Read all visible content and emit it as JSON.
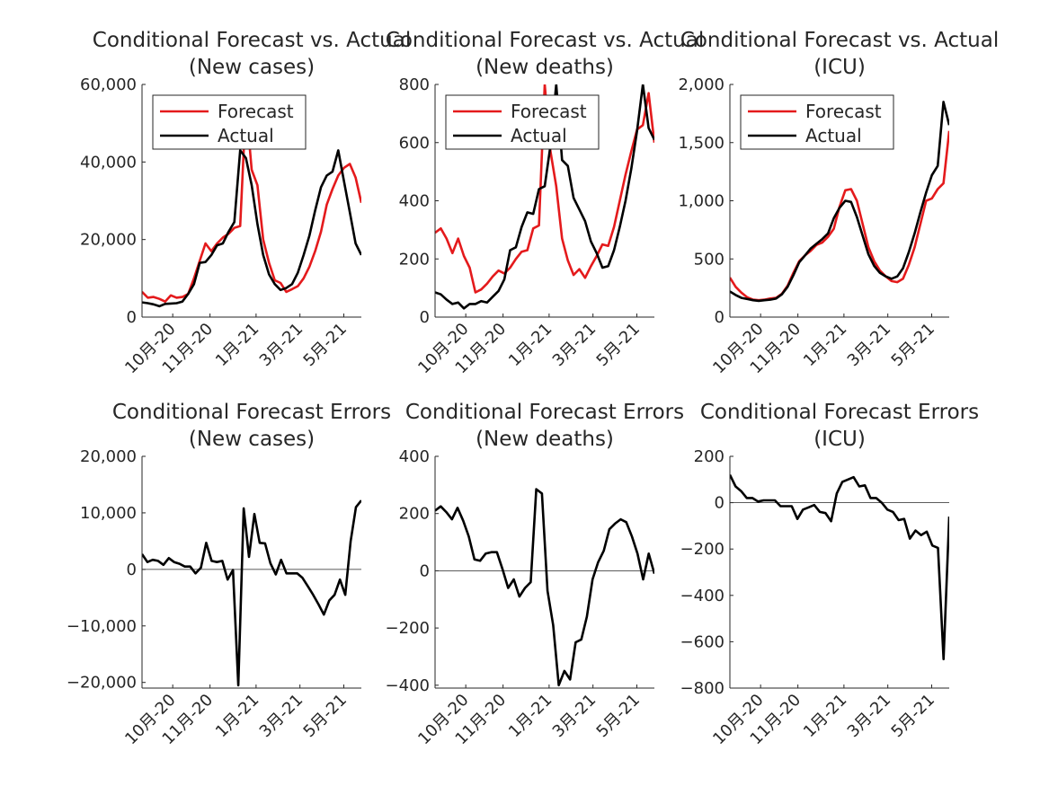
{
  "figure": {
    "background": "#ffffff",
    "forecast_color": "#e41a1c",
    "actual_color": "#000000"
  },
  "chart_data": [
    {
      "type": "line",
      "title": [
        "Conditional Forecast vs. Actual",
        "(New cases)"
      ],
      "xlabel": "",
      "ylabel": "",
      "xticks": [
        "10月-20",
        "11月-20",
        "1月-21",
        "3月-21",
        "5月-21"
      ],
      "ylim": [
        0,
        60000
      ],
      "yticks": [
        "0",
        "20,000",
        "40,000",
        "60,000"
      ],
      "ytick_values": [
        0,
        20000,
        40000,
        60000
      ],
      "legend": "top-left",
      "series": [
        {
          "name": "Forecast",
          "color": "#e41a1c",
          "values": [
            6500,
            5000,
            5200,
            4700,
            4000,
            5600,
            5000,
            5200,
            6000,
            10000,
            14500,
            19000,
            17000,
            19000,
            20500,
            21500,
            23000,
            23500,
            55000,
            38000,
            34000,
            20000,
            14000,
            9500,
            8800,
            6500,
            7200,
            8000,
            10000,
            13000,
            17000,
            22000,
            29000,
            33000,
            36500,
            38500,
            39500,
            36000,
            29500
          ]
        },
        {
          "name": "Actual",
          "color": "#000000",
          "values": [
            3800,
            3600,
            3300,
            2800,
            3400,
            3500,
            3600,
            4000,
            6000,
            8500,
            14000,
            14200,
            16000,
            18500,
            19000,
            22000,
            24500,
            43000,
            41000,
            34000,
            24000,
            16000,
            11000,
            8500,
            7000,
            7500,
            8500,
            11500,
            16000,
            21000,
            27500,
            33500,
            36500,
            37500,
            43000,
            35000,
            27000,
            19000,
            16000
          ]
        }
      ]
    },
    {
      "type": "line",
      "title": [
        "Conditional Forecast vs. Actual",
        "(New deaths)"
      ],
      "xlabel": "",
      "ylabel": "",
      "xticks": [
        "10月-20",
        "11月-20",
        "1月-21",
        "3月-21",
        "5月-21"
      ],
      "ylim": [
        0,
        800
      ],
      "yticks": [
        "0",
        "200",
        "400",
        "600",
        "800"
      ],
      "ytick_values": [
        0,
        200,
        400,
        600,
        800
      ],
      "legend": "top-left",
      "series": [
        {
          "name": "Forecast",
          "color": "#e41a1c",
          "values": [
            290,
            305,
            270,
            220,
            270,
            210,
            170,
            85,
            95,
            115,
            140,
            160,
            150,
            170,
            200,
            225,
            230,
            305,
            315,
            800,
            570,
            450,
            270,
            195,
            145,
            165,
            135,
            175,
            210,
            250,
            245,
            310,
            400,
            490,
            570,
            645,
            660,
            770,
            600
          ]
        },
        {
          "name": "Actual",
          "color": "#000000",
          "values": [
            85,
            78,
            60,
            45,
            50,
            30,
            45,
            45,
            55,
            50,
            70,
            90,
            130,
            230,
            240,
            310,
            360,
            355,
            440,
            450,
            590,
            800,
            540,
            520,
            410,
            370,
            330,
            260,
            220,
            170,
            175,
            230,
            310,
            400,
            510,
            640,
            800,
            650,
            610
          ]
        }
      ]
    },
    {
      "type": "line",
      "title": [
        "Conditional Forecast vs. Actual",
        "(ICU)"
      ],
      "xlabel": "",
      "ylabel": "",
      "xticks": [
        "10月-20",
        "11月-20",
        "1月-21",
        "3月-21",
        "5月-21"
      ],
      "ylim": [
        0,
        2000
      ],
      "yticks": [
        "0",
        "500",
        "1,000",
        "1,500",
        "2,000"
      ],
      "ytick_values": [
        0,
        500,
        1000,
        1500,
        2000
      ],
      "legend": "top-left",
      "series": [
        {
          "name": "Forecast",
          "color": "#e41a1c",
          "values": [
            340,
            260,
            210,
            170,
            150,
            145,
            150,
            160,
            165,
            200,
            270,
            380,
            480,
            530,
            570,
            620,
            640,
            690,
            760,
            950,
            1090,
            1100,
            1000,
            800,
            600,
            480,
            400,
            350,
            310,
            300,
            330,
            450,
            600,
            800,
            1000,
            1020,
            1100,
            1150,
            1600
          ]
        },
        {
          "name": "Actual",
          "color": "#000000",
          "values": [
            220,
            190,
            165,
            155,
            145,
            140,
            145,
            150,
            160,
            195,
            260,
            360,
            470,
            530,
            590,
            630,
            670,
            720,
            850,
            940,
            1000,
            990,
            860,
            700,
            540,
            440,
            380,
            350,
            330,
            350,
            420,
            560,
            720,
            900,
            1070,
            1220,
            1300,
            1850,
            1650
          ]
        }
      ]
    },
    {
      "type": "line",
      "title": [
        "Conditional Forecast Errors",
        "(New cases)"
      ],
      "xlabel": "",
      "ylabel": "",
      "xticks": [
        "10月-20",
        "11月-20",
        "1月-21",
        "3月-21",
        "5月-21"
      ],
      "ylim": [
        -21000,
        20000
      ],
      "yticks": [
        "−20,000",
        "−10,000",
        "0",
        "10,000",
        "20,000"
      ],
      "ytick_values": [
        -20000,
        -10000,
        0,
        10000,
        20000
      ],
      "zero_line": true,
      "series": [
        {
          "name": "",
          "color": "#000000",
          "values": [
            2700,
            1300,
            1700,
            1500,
            800,
            2000,
            1300,
            1000,
            500,
            500,
            -700,
            300,
            4700,
            1500,
            1300,
            1500,
            -1800,
            -100,
            -20500,
            10800,
            2200,
            9800,
            4700,
            4600,
            1100,
            -900,
            1700,
            -700,
            -700,
            -700,
            -1500,
            -3000,
            -4500,
            -6200,
            -8000,
            -5500,
            -4500,
            -1800,
            -4500,
            5000,
            11000,
            12200
          ]
        }
      ]
    },
    {
      "type": "line",
      "title": [
        "Conditional Forecast Errors",
        "(New deaths)"
      ],
      "xlabel": "",
      "ylabel": "",
      "xticks": [
        "10月-20",
        "11月-20",
        "1月-21",
        "3月-21",
        "5月-21"
      ],
      "ylim": [
        -410,
        400
      ],
      "yticks": [
        "−400",
        "−200",
        "0",
        "200",
        "400"
      ],
      "ytick_values": [
        -400,
        -200,
        0,
        200,
        400
      ],
      "zero_line": true,
      "series": [
        {
          "name": "",
          "color": "#000000",
          "values": [
            210,
            225,
            205,
            180,
            220,
            175,
            120,
            40,
            35,
            60,
            65,
            65,
            5,
            -60,
            -30,
            -90,
            -60,
            -40,
            285,
            270,
            -70,
            -190,
            -400,
            -350,
            -380,
            -250,
            -240,
            -160,
            -30,
            30,
            70,
            145,
            165,
            180,
            170,
            120,
            60,
            -30,
            60,
            -10
          ]
        }
      ]
    },
    {
      "type": "line",
      "title": [
        "Conditional Forecast Errors",
        "(ICU)"
      ],
      "xlabel": "",
      "ylabel": "",
      "xticks": [
        "10月-20",
        "11月-20",
        "1月-21",
        "3月-21",
        "5月-21"
      ],
      "ylim": [
        -800,
        200
      ],
      "yticks": [
        "−800",
        "−600",
        "−400",
        "−200",
        "0",
        "200"
      ],
      "ytick_values": [
        -800,
        -600,
        -400,
        -200,
        0,
        200
      ],
      "zero_line": true,
      "series": [
        {
          "name": "",
          "color": "#000000",
          "values": [
            120,
            70,
            50,
            20,
            20,
            5,
            10,
            10,
            10,
            -15,
            -15,
            -15,
            -70,
            -30,
            -20,
            -10,
            -40,
            -45,
            -80,
            40,
            90,
            100,
            110,
            70,
            75,
            20,
            20,
            0,
            -30,
            -40,
            -75,
            -70,
            -155,
            -120,
            -140,
            -125,
            -185,
            -195,
            -675,
            -60
          ]
        }
      ]
    }
  ]
}
